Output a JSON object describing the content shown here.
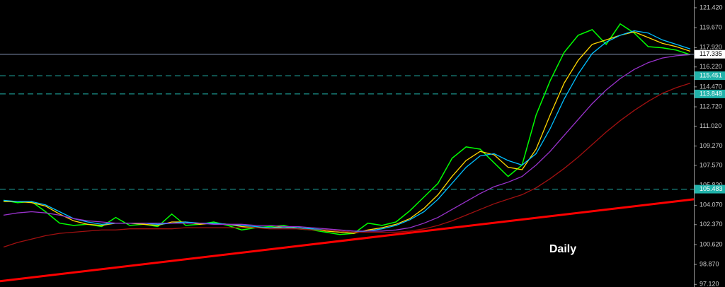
{
  "chart_data": {
    "type": "line",
    "annotation": "Daily",
    "ylim": [
      96.89,
      122.1
    ],
    "yticks": [
      {
        "value": 121.42,
        "label": "121.420"
      },
      {
        "value": 119.67,
        "label": "119.670"
      },
      {
        "value": 117.92,
        "label": "117.920"
      },
      {
        "value": 116.22,
        "label": "116.220"
      },
      {
        "value": 114.47,
        "label": "114.470"
      },
      {
        "value": 112.72,
        "label": "112.720"
      },
      {
        "value": 111.02,
        "label": "111.020"
      },
      {
        "value": 109.27,
        "label": "109.270"
      },
      {
        "value": 107.57,
        "label": "107.570"
      },
      {
        "value": 105.82,
        "label": "105.820"
      },
      {
        "value": 104.07,
        "label": "104.070"
      },
      {
        "value": 102.37,
        "label": "102.370"
      },
      {
        "value": 100.62,
        "label": "100.620"
      },
      {
        "value": 98.87,
        "label": "98.870"
      },
      {
        "value": 97.12,
        "label": "97.120"
      }
    ],
    "series": [
      {
        "color": "#00ff00",
        "values": [
          104.5,
          104.3,
          104.4,
          103.5,
          102.5,
          102.3,
          102.4,
          102.2,
          103.0,
          102.3,
          102.4,
          102.2,
          103.3,
          102.3,
          102.4,
          102.6,
          102.3,
          101.9,
          102.1,
          102.2,
          102.3,
          102.0,
          101.9,
          101.7,
          101.5,
          101.6,
          102.5,
          102.3,
          102.6,
          103.6,
          104.8,
          106.0,
          108.2,
          109.2,
          109.0,
          107.8,
          106.6,
          107.6,
          112.0,
          115.0,
          117.5,
          119.0,
          119.5,
          118.2,
          120.0,
          119.2,
          118.0,
          117.9,
          117.7,
          117.3
        ]
      },
      {
        "color": "#ffd700",
        "values": [
          104.4,
          104.4,
          104.3,
          104.0,
          103.3,
          102.7,
          102.4,
          102.3,
          102.5,
          102.5,
          102.4,
          102.3,
          102.6,
          102.6,
          102.4,
          102.5,
          102.4,
          102.2,
          102.1,
          102.1,
          102.2,
          102.1,
          102.0,
          101.8,
          101.7,
          101.6,
          101.9,
          102.1,
          102.4,
          102.9,
          103.8,
          105.0,
          106.6,
          108.0,
          108.8,
          108.5,
          107.4,
          107.2,
          109.0,
          112.0,
          114.8,
          116.8,
          118.2,
          118.6,
          119.0,
          119.3,
          118.8,
          118.3,
          118.0,
          117.6
        ]
      },
      {
        "color": "#00bfff",
        "values": [
          104.5,
          104.4,
          104.4,
          104.1,
          103.5,
          102.9,
          102.6,
          102.4,
          102.5,
          102.5,
          102.5,
          102.4,
          102.5,
          102.6,
          102.5,
          102.5,
          102.4,
          102.3,
          102.2,
          102.1,
          102.1,
          102.1,
          102.0,
          101.9,
          101.8,
          101.7,
          101.8,
          102.0,
          102.3,
          102.8,
          103.5,
          104.6,
          106.0,
          107.4,
          108.4,
          108.6,
          108.0,
          107.6,
          108.6,
          110.8,
          113.4,
          115.6,
          117.4,
          118.4,
          119.0,
          119.4,
          119.2,
          118.6,
          118.2,
          117.8
        ]
      },
      {
        "color": "#9932cc",
        "values": [
          103.2,
          103.4,
          103.5,
          103.4,
          103.2,
          102.9,
          102.7,
          102.6,
          102.5,
          102.5,
          102.5,
          102.5,
          102.5,
          102.5,
          102.5,
          102.4,
          102.4,
          102.4,
          102.3,
          102.3,
          102.2,
          102.2,
          102.1,
          102.0,
          101.9,
          101.8,
          101.8,
          101.8,
          101.9,
          102.1,
          102.5,
          103.0,
          103.7,
          104.4,
          105.1,
          105.7,
          106.1,
          106.6,
          107.6,
          108.8,
          110.2,
          111.6,
          113.0,
          114.2,
          115.2,
          116.0,
          116.6,
          117.0,
          117.2,
          117.3
        ]
      },
      {
        "color": "#a01010",
        "values": [
          100.4,
          100.8,
          101.1,
          101.4,
          101.6,
          101.7,
          101.8,
          101.9,
          101.9,
          102.0,
          102.0,
          102.0,
          102.0,
          102.1,
          102.1,
          102.1,
          102.1,
          102.1,
          102.1,
          102.0,
          102.0,
          102.0,
          101.9,
          101.9,
          101.8,
          101.7,
          101.7,
          101.7,
          101.7,
          101.8,
          102.0,
          102.3,
          102.7,
          103.2,
          103.7,
          104.2,
          104.6,
          105.0,
          105.6,
          106.4,
          107.3,
          108.3,
          109.4,
          110.5,
          111.5,
          112.4,
          113.2,
          113.9,
          114.4,
          114.8
        ]
      }
    ],
    "trendline": {
      "color": "#ff0000",
      "values": [
        97.4,
        104.6
      ]
    },
    "levels": [
      {
        "value": 117.335,
        "color": "#8899bb",
        "style": "solid"
      },
      {
        "value": 115.451,
        "color": "#20b2aa",
        "style": "dashed"
      },
      {
        "value": 113.848,
        "color": "#20b2aa",
        "style": "dashed"
      },
      {
        "value": 105.483,
        "color": "#20b2aa",
        "style": "dashed"
      }
    ]
  }
}
